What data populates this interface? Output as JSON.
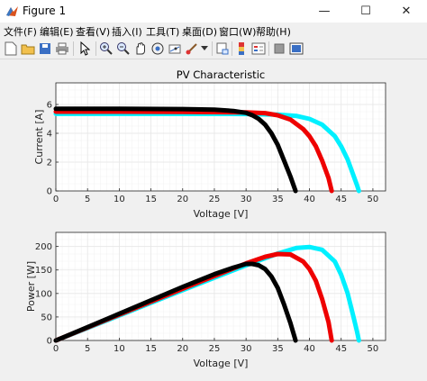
{
  "window": {
    "title": "Figure 1",
    "minimize_glyph": "—",
    "maximize_glyph": "☐",
    "close_glyph": "✕"
  },
  "menu": [
    {
      "label": "文件(F)"
    },
    {
      "label": "编辑(E)"
    },
    {
      "label": "查看(V)"
    },
    {
      "label": "插入(I)"
    },
    {
      "label": "工具(T)"
    },
    {
      "label": "桌面(D)"
    },
    {
      "label": "窗口(W)"
    },
    {
      "label": "帮助(H)"
    }
  ],
  "toolbar_icons": [
    "new-figure-icon",
    "open-file-icon",
    "save-icon",
    "print-icon",
    "pointer-icon",
    "zoom-in-icon",
    "zoom-out-icon",
    "pan-icon",
    "rotate-icon",
    "data-cursor-icon",
    "brush-icon",
    "link-icon",
    "colorbar-icon",
    "legend-icon",
    "hide-plot-tools-icon",
    "show-plot-tools-icon"
  ],
  "colors": {
    "series_cyan": "#00f0ff",
    "series_red": "#ee0000",
    "series_black": "#000000",
    "grid": "#e6e6e6",
    "axes_bg": "#ffffff"
  },
  "chart_data": [
    {
      "type": "line",
      "title": "PV Characteristic",
      "xlabel": "Voltage [V]",
      "ylabel": "Current [A]",
      "xlim": [
        0,
        52
      ],
      "ylim": [
        0,
        7.5
      ],
      "xticks": [
        0,
        5,
        10,
        15,
        20,
        25,
        30,
        35,
        40,
        45,
        50
      ],
      "yticks": [
        0,
        2,
        4,
        6
      ],
      "grid": true,
      "series": [
        {
          "color": "#00f0ff",
          "x": [
            0,
            10,
            20,
            30,
            35,
            38,
            40,
            42,
            44,
            45,
            46,
            47,
            47.5,
            47.8
          ],
          "y": [
            5.35,
            5.35,
            5.35,
            5.34,
            5.3,
            5.2,
            5.0,
            4.6,
            3.8,
            3.1,
            2.2,
            1.0,
            0.4,
            0
          ]
        },
        {
          "color": "#ee0000",
          "x": [
            0,
            10,
            20,
            30,
            33,
            35,
            37,
            39,
            40,
            41,
            42,
            43,
            43.5
          ],
          "y": [
            5.5,
            5.5,
            5.49,
            5.45,
            5.4,
            5.25,
            4.95,
            4.3,
            3.8,
            3.1,
            2.1,
            0.9,
            0
          ]
        },
        {
          "color": "#000000",
          "x": [
            0,
            10,
            20,
            25,
            28,
            30,
            31,
            32,
            33,
            34,
            35,
            36,
            37,
            37.8
          ],
          "y": [
            5.7,
            5.7,
            5.68,
            5.64,
            5.55,
            5.42,
            5.25,
            5.0,
            4.6,
            4.0,
            3.2,
            2.1,
            1.0,
            0
          ]
        }
      ]
    },
    {
      "type": "line",
      "title": "",
      "xlabel": "Voltage [V]",
      "ylabel": "Power [W]",
      "xlim": [
        0,
        52
      ],
      "ylim": [
        0,
        230
      ],
      "xticks": [
        0,
        5,
        10,
        15,
        20,
        25,
        30,
        35,
        40,
        45,
        50
      ],
      "yticks": [
        0,
        50,
        100,
        150,
        200
      ],
      "grid": true,
      "series": [
        {
          "color": "#00f0ff",
          "x": [
            0,
            10,
            20,
            30,
            35,
            38,
            40,
            42,
            44,
            45,
            46,
            47,
            47.5,
            47.8
          ],
          "y": [
            0,
            53,
            107,
            160,
            185,
            197,
            199,
            193,
            168,
            140,
            101,
            47,
            19,
            0
          ]
        },
        {
          "color": "#ee0000",
          "x": [
            0,
            10,
            20,
            30,
            33,
            35,
            37,
            39,
            40,
            41,
            42,
            43,
            43.5
          ],
          "y": [
            0,
            55,
            110,
            164,
            178,
            184,
            183,
            168,
            152,
            127,
            88,
            39,
            0
          ]
        },
        {
          "color": "#000000",
          "x": [
            0,
            10,
            20,
            25,
            28,
            30,
            31,
            32,
            33,
            34,
            35,
            36,
            37,
            37.8
          ],
          "y": [
            0,
            57,
            114,
            141,
            155,
            163,
            163,
            160,
            152,
            136,
            112,
            76,
            37,
            0
          ]
        }
      ]
    }
  ]
}
